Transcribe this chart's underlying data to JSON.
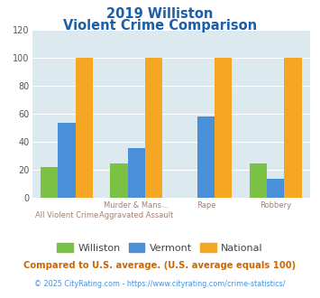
{
  "title_line1": "2019 Williston",
  "title_line2": "Violent Crime Comparison",
  "label1": [
    "",
    "Murder & Mans...",
    "Rape",
    "Robbery"
  ],
  "label2": [
    "All Violent Crime",
    "Aggravated Assault",
    "",
    ""
  ],
  "williston": [
    22,
    25,
    0,
    25
  ],
  "vermont": [
    54,
    36,
    58,
    14
  ],
  "national": [
    100,
    100,
    100,
    100
  ],
  "williston_color": "#7bc143",
  "vermont_color": "#4a90d9",
  "national_color": "#f5a623",
  "ylim": [
    0,
    120
  ],
  "yticks": [
    0,
    20,
    40,
    60,
    80,
    100,
    120
  ],
  "plot_bg": "#dce9ef",
  "title_color": "#1a5fa8",
  "xlabel_color": "#a08070",
  "footer_text": "Compared to U.S. average. (U.S. average equals 100)",
  "credit_text": "© 2025 CityRating.com - https://www.cityrating.com/crime-statistics/",
  "footer_color": "#cc6600",
  "credit_color": "#4a90d9",
  "bar_width": 0.25
}
